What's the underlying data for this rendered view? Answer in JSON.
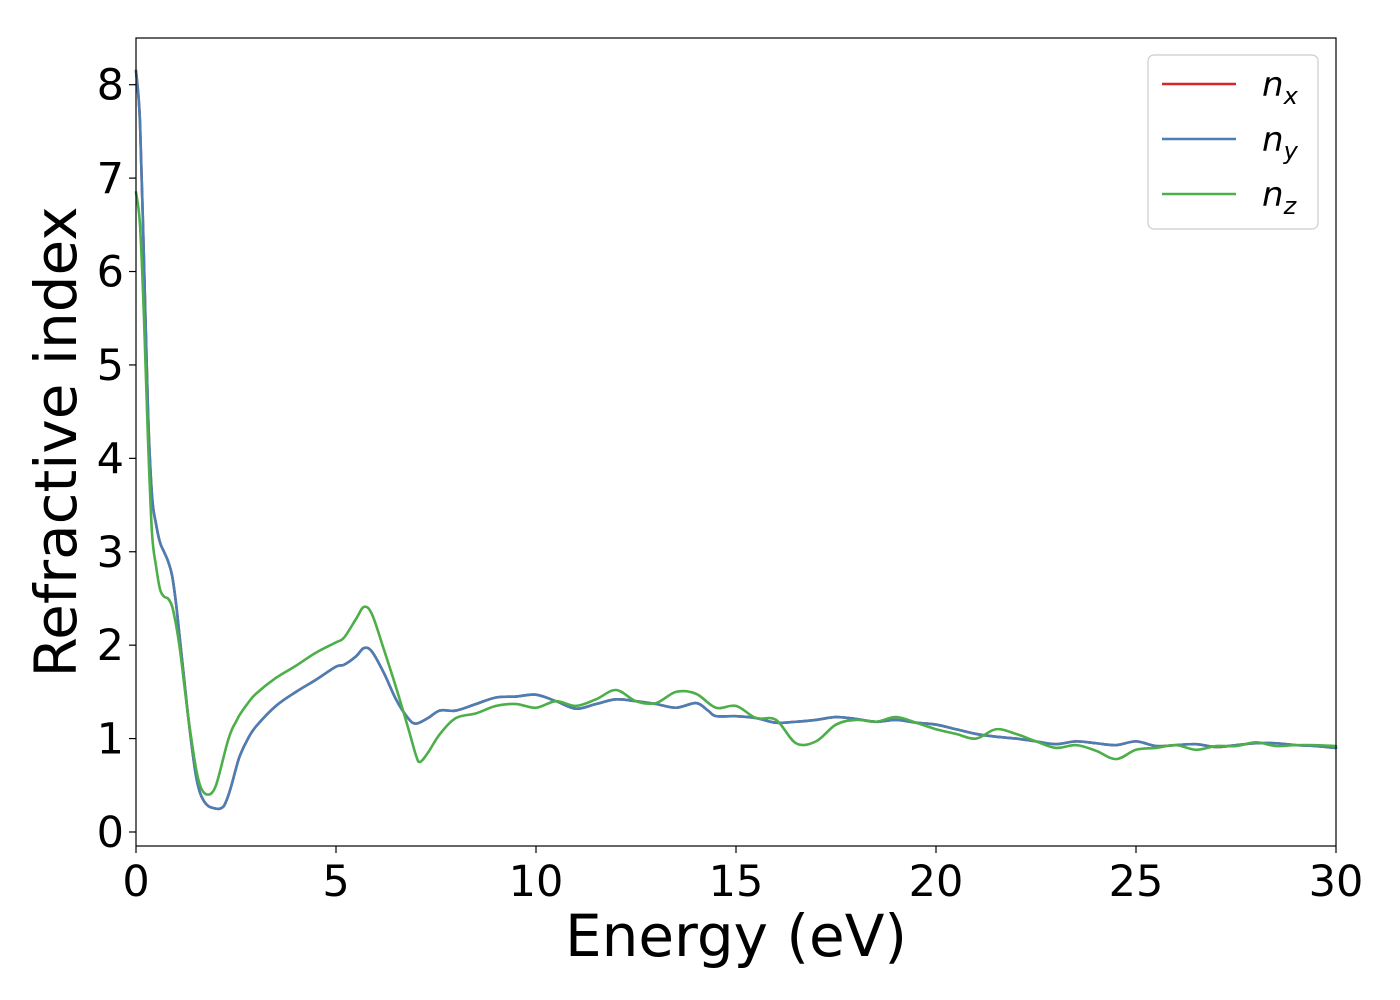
{
  "chart_data": {
    "type": "line",
    "xlabel": "Energy (eV)",
    "ylabel": "Refractive index",
    "xlim": [
      0,
      30
    ],
    "ylim": [
      -0.15,
      8.5
    ],
    "xticks": [
      "0",
      "5",
      "10",
      "15",
      "20",
      "25",
      "30"
    ],
    "yticks": [
      "0",
      "1",
      "2",
      "3",
      "4",
      "5",
      "6",
      "7",
      "8"
    ],
    "grid": false,
    "legend_position": "top-right",
    "series": [
      {
        "name": "n",
        "subscript": "x",
        "color": "#d62728",
        "x": [
          0,
          0.1,
          0.2,
          0.3,
          0.4,
          0.5,
          0.6,
          0.7,
          0.8,
          0.9,
          1.0,
          1.1,
          1.2,
          1.3,
          1.4,
          1.5,
          1.6,
          1.7,
          1.8,
          1.9,
          2.0,
          2.1,
          2.2,
          2.3,
          2.4,
          2.5,
          2.6,
          2.8,
          3.0,
          3.5,
          4.0,
          4.5,
          5.0,
          5.2,
          5.5,
          5.7,
          5.9,
          6.2,
          6.5,
          6.8,
          7.0,
          7.3,
          7.6,
          8.0,
          8.5,
          9.0,
          9.5,
          10.0,
          10.5,
          11.0,
          11.5,
          12.0,
          12.5,
          13.0,
          13.5,
          14.0,
          14.3,
          14.5,
          15.0,
          15.5,
          16.0,
          16.5,
          17.0,
          17.5,
          18.0,
          18.5,
          19.0,
          19.5,
          20.0,
          20.5,
          21.0,
          21.5,
          22.0,
          22.5,
          23.0,
          23.5,
          24.0,
          24.5,
          25.0,
          25.5,
          26.0,
          26.5,
          27.0,
          27.5,
          28.0,
          28.5,
          29.0,
          29.5,
          30.0
        ],
        "y": [
          8.15,
          7.6,
          6.1,
          4.5,
          3.6,
          3.3,
          3.1,
          3.0,
          2.9,
          2.75,
          2.45,
          2.05,
          1.65,
          1.25,
          0.9,
          0.6,
          0.42,
          0.33,
          0.28,
          0.26,
          0.25,
          0.25,
          0.28,
          0.38,
          0.52,
          0.68,
          0.82,
          1.0,
          1.13,
          1.35,
          1.5,
          1.63,
          1.77,
          1.79,
          1.88,
          1.97,
          1.93,
          1.7,
          1.42,
          1.22,
          1.16,
          1.22,
          1.3,
          1.3,
          1.37,
          1.44,
          1.45,
          1.47,
          1.4,
          1.32,
          1.37,
          1.42,
          1.4,
          1.37,
          1.33,
          1.38,
          1.3,
          1.24,
          1.24,
          1.22,
          1.17,
          1.18,
          1.2,
          1.23,
          1.21,
          1.18,
          1.2,
          1.17,
          1.15,
          1.1,
          1.05,
          1.02,
          1.0,
          0.97,
          0.94,
          0.97,
          0.95,
          0.93,
          0.97,
          0.92,
          0.93,
          0.94,
          0.91,
          0.93,
          0.95,
          0.95,
          0.93,
          0.92,
          0.9
        ]
      },
      {
        "name": "n",
        "subscript": "y",
        "color": "#4a7fb5",
        "x": [
          0,
          0.1,
          0.2,
          0.3,
          0.4,
          0.5,
          0.6,
          0.7,
          0.8,
          0.9,
          1.0,
          1.1,
          1.2,
          1.3,
          1.4,
          1.5,
          1.6,
          1.7,
          1.8,
          1.9,
          2.0,
          2.1,
          2.2,
          2.3,
          2.4,
          2.5,
          2.6,
          2.8,
          3.0,
          3.5,
          4.0,
          4.5,
          5.0,
          5.2,
          5.5,
          5.7,
          5.9,
          6.2,
          6.5,
          6.8,
          7.0,
          7.3,
          7.6,
          8.0,
          8.5,
          9.0,
          9.5,
          10.0,
          10.5,
          11.0,
          11.5,
          12.0,
          12.5,
          13.0,
          13.5,
          14.0,
          14.3,
          14.5,
          15.0,
          15.5,
          16.0,
          16.5,
          17.0,
          17.5,
          18.0,
          18.5,
          19.0,
          19.5,
          20.0,
          20.5,
          21.0,
          21.5,
          22.0,
          22.5,
          23.0,
          23.5,
          24.0,
          24.5,
          25.0,
          25.5,
          26.0,
          26.5,
          27.0,
          27.5,
          28.0,
          28.5,
          29.0,
          29.5,
          30.0
        ],
        "y": [
          8.15,
          7.6,
          6.1,
          4.5,
          3.6,
          3.3,
          3.1,
          3.0,
          2.9,
          2.75,
          2.45,
          2.05,
          1.65,
          1.25,
          0.9,
          0.6,
          0.42,
          0.33,
          0.28,
          0.26,
          0.25,
          0.25,
          0.28,
          0.38,
          0.52,
          0.68,
          0.82,
          1.0,
          1.13,
          1.35,
          1.5,
          1.63,
          1.77,
          1.79,
          1.88,
          1.97,
          1.93,
          1.7,
          1.42,
          1.22,
          1.16,
          1.22,
          1.3,
          1.3,
          1.37,
          1.44,
          1.45,
          1.47,
          1.4,
          1.32,
          1.37,
          1.42,
          1.4,
          1.37,
          1.33,
          1.38,
          1.3,
          1.24,
          1.24,
          1.22,
          1.17,
          1.18,
          1.2,
          1.23,
          1.21,
          1.18,
          1.2,
          1.17,
          1.15,
          1.1,
          1.05,
          1.02,
          1.0,
          0.97,
          0.94,
          0.97,
          0.95,
          0.93,
          0.97,
          0.92,
          0.93,
          0.94,
          0.91,
          0.93,
          0.95,
          0.95,
          0.93,
          0.92,
          0.9
        ]
      },
      {
        "name": "n",
        "subscript": "z",
        "color": "#4daf4a",
        "x": [
          0,
          0.1,
          0.2,
          0.3,
          0.4,
          0.5,
          0.6,
          0.7,
          0.8,
          0.9,
          1.0,
          1.1,
          1.2,
          1.3,
          1.4,
          1.5,
          1.6,
          1.7,
          1.8,
          1.9,
          2.0,
          2.1,
          2.2,
          2.3,
          2.4,
          2.5,
          2.6,
          2.8,
          3.0,
          3.5,
          4.0,
          4.5,
          5.0,
          5.2,
          5.5,
          5.7,
          5.9,
          6.2,
          6.5,
          6.8,
          7.0,
          7.1,
          7.3,
          7.6,
          8.0,
          8.5,
          9.0,
          9.5,
          10.0,
          10.5,
          11.0,
          11.5,
          12.0,
          12.5,
          13.0,
          13.5,
          14.0,
          14.5,
          15.0,
          15.5,
          16.0,
          16.5,
          17.0,
          17.5,
          18.0,
          18.5,
          19.0,
          19.5,
          20.0,
          20.5,
          21.0,
          21.5,
          22.0,
          22.5,
          23.0,
          23.5,
          24.0,
          24.5,
          25.0,
          25.5,
          26.0,
          26.5,
          27.0,
          27.5,
          28.0,
          28.5,
          29.0,
          29.5,
          30.0
        ],
        "y": [
          6.85,
          6.5,
          5.5,
          4.2,
          3.2,
          2.85,
          2.6,
          2.52,
          2.5,
          2.42,
          2.22,
          1.95,
          1.6,
          1.25,
          0.95,
          0.68,
          0.5,
          0.42,
          0.4,
          0.42,
          0.5,
          0.65,
          0.82,
          0.98,
          1.1,
          1.18,
          1.26,
          1.38,
          1.48,
          1.65,
          1.78,
          1.92,
          2.03,
          2.08,
          2.28,
          2.41,
          2.33,
          1.95,
          1.55,
          1.12,
          0.82,
          0.75,
          0.85,
          1.05,
          1.22,
          1.27,
          1.35,
          1.37,
          1.33,
          1.4,
          1.35,
          1.42,
          1.52,
          1.4,
          1.38,
          1.5,
          1.48,
          1.33,
          1.35,
          1.22,
          1.2,
          0.95,
          0.97,
          1.15,
          1.2,
          1.18,
          1.23,
          1.17,
          1.1,
          1.05,
          1.0,
          1.1,
          1.05,
          0.97,
          0.9,
          0.93,
          0.87,
          0.78,
          0.88,
          0.9,
          0.93,
          0.88,
          0.92,
          0.92,
          0.96,
          0.92,
          0.93,
          0.93,
          0.92
        ]
      }
    ]
  }
}
